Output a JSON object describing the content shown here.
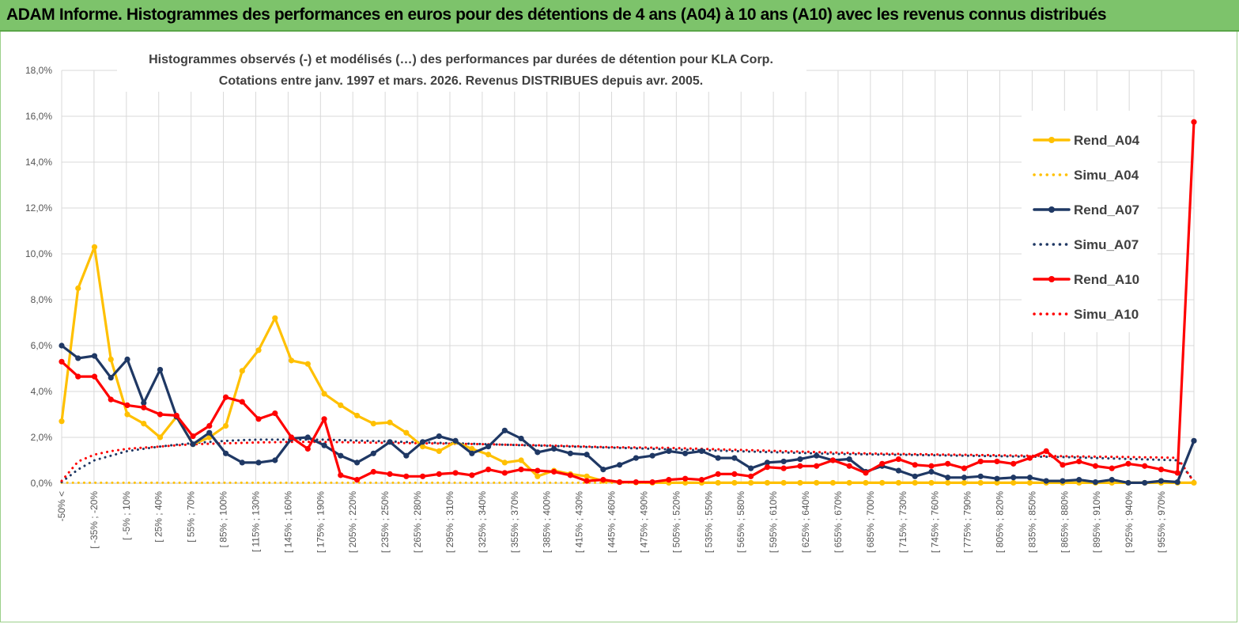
{
  "banner": {
    "title": "ADAM Informe. Histogrammes des performances en euros pour des détentions de 4 ans (A04) à 10 ans (A10) avec les revenus connus distribués"
  },
  "chart_data": {
    "type": "line",
    "title_line1": "Histogrammes observés (-) et modélisés (…) des performances par durées de détention pour KLA Corp.",
    "title_line2": "Cotations entre janv. 1997 et mars. 2026. Revenus DISTRIBUES depuis avr. 2005.",
    "ylim": [
      0,
      18
    ],
    "yticks": [
      "0,0%",
      "2,0%",
      "4,0%",
      "6,0%",
      "8,0%",
      "10,0%",
      "12,0%",
      "14,0%",
      "16,0%",
      "18,0%"
    ],
    "xlabels": [
      "-50% <",
      "[ -35% ; -20%",
      "[ -5% ; 10%",
      "[ 25% ; 40%",
      "[ 55% ; 70%",
      "[ 85% ; 100%",
      "[ 115% ; 130%",
      "[ 145% ; 160%",
      "[ 175% ; 190%",
      "[ 205% ; 220%",
      "[ 235% ; 250%",
      "[ 265% ; 280%",
      "[ 295% ; 310%",
      "[ 325% ; 340%",
      "[ 355% ; 370%",
      "[ 385% ; 400%",
      "[ 415% ; 430%",
      "[ 445% ; 460%",
      "[ 475% ; 490%",
      "[ 505% ; 520%",
      "[ 535% ; 550%",
      "[ 565% ; 580%",
      "[ 595% ; 610%",
      "[ 625% ; 640%",
      "[ 655% ; 670%",
      "[ 685% ; 700%",
      "[ 715% ; 730%",
      "[ 745% ; 760%",
      "[ 775% ; 790%",
      "[ 805% ; 820%",
      "[ 835% ; 850%",
      "[ 865% ; 880%",
      "[ 895% ; 910%",
      "[ 925% ; 940%",
      "[ 955% ; 970%"
    ],
    "n_points": 70,
    "legend": [
      "Rend_A04",
      "Simu_A04",
      "Rend_A07",
      "Simu_A07",
      "Rend_A10",
      "Simu_A10"
    ],
    "series": [
      {
        "name": "Rend_A04",
        "color": "#FFC000",
        "style": "solid",
        "values": [
          2.7,
          8.5,
          10.3,
          5.4,
          3.0,
          2.6,
          2.0,
          2.9,
          1.7,
          2.0,
          2.5,
          4.9,
          5.8,
          7.2,
          5.35,
          5.2,
          3.9,
          3.4,
          2.95,
          2.6,
          2.65,
          2.2,
          1.6,
          1.4,
          1.8,
          1.5,
          1.25,
          0.9,
          1.0,
          0.3,
          0.55,
          0.4,
          0.3,
          0.1,
          0.05,
          0.03,
          0.02,
          0.02,
          0.02,
          0.02,
          0.02,
          0.02,
          0.02,
          0.02,
          0.02,
          0.02,
          0.02,
          0.02,
          0.02,
          0.02,
          0.02,
          0.02,
          0.02,
          0.02,
          0.02,
          0.02,
          0.02,
          0.02,
          0.02,
          0.02,
          0.02,
          0.02,
          0.02,
          0.02,
          0.02,
          0.02,
          0.02,
          0.02,
          0.02,
          0.02
        ]
      },
      {
        "name": "Simu_A04",
        "color": "#FFC000",
        "style": "dotted",
        "values": [
          0.02,
          0.02,
          0.02,
          0.02,
          0.02,
          0.02,
          0.02,
          0.02,
          0.02,
          0.02,
          0.02,
          0.02,
          0.02,
          0.02,
          0.02,
          0.02,
          0.02,
          0.02,
          0.02,
          0.02,
          0.02,
          0.02,
          0.02,
          0.02,
          0.02,
          0.02,
          0.02,
          0.02,
          0.02,
          0.02,
          0.02,
          0.02,
          0.02,
          0.02,
          0.02,
          0.02,
          0.02,
          0.02,
          0.02,
          0.02,
          0.02,
          0.02,
          0.02,
          0.02,
          0.02,
          0.02,
          0.02,
          0.02,
          0.02,
          0.02,
          0.02,
          0.02,
          0.02,
          0.02,
          0.02,
          0.02,
          0.02,
          0.02,
          0.02,
          0.02,
          0.02,
          0.02,
          0.02,
          0.02,
          0.02,
          0.02,
          0.02,
          0.02,
          0.02,
          0.02
        ]
      },
      {
        "name": "Rend_A07",
        "color": "#1F3864",
        "style": "solid",
        "values": [
          6.0,
          5.45,
          5.55,
          4.6,
          5.4,
          3.5,
          4.95,
          2.9,
          1.7,
          2.2,
          1.3,
          0.9,
          0.9,
          1.0,
          1.95,
          2.0,
          1.65,
          1.2,
          0.9,
          1.3,
          1.8,
          1.2,
          1.8,
          2.05,
          1.85,
          1.3,
          1.6,
          2.3,
          1.95,
          1.35,
          1.5,
          1.3,
          1.25,
          0.6,
          0.8,
          1.1,
          1.2,
          1.4,
          1.3,
          1.4,
          1.1,
          1.1,
          0.65,
          0.9,
          0.95,
          1.05,
          1.2,
          1.0,
          1.05,
          0.5,
          0.75,
          0.55,
          0.3,
          0.5,
          0.25,
          0.25,
          0.3,
          0.2,
          0.25,
          0.25,
          0.1,
          0.1,
          0.15,
          0.05,
          0.15,
          0.02,
          0.02,
          0.1,
          0.05,
          1.85
        ]
      },
      {
        "name": "Simu_A07",
        "color": "#1F3864",
        "style": "dotted",
        "values": [
          0.05,
          0.6,
          1.0,
          1.2,
          1.4,
          1.5,
          1.6,
          1.68,
          1.75,
          1.8,
          1.85,
          1.88,
          1.9,
          1.9,
          1.9,
          1.9,
          1.9,
          1.88,
          1.86,
          1.84,
          1.82,
          1.8,
          1.78,
          1.76,
          1.74,
          1.72,
          1.7,
          1.68,
          1.66,
          1.64,
          1.62,
          1.6,
          1.58,
          1.56,
          1.54,
          1.52,
          1.5,
          1.48,
          1.46,
          1.44,
          1.42,
          1.4,
          1.38,
          1.36,
          1.34,
          1.32,
          1.3,
          1.28,
          1.27,
          1.26,
          1.25,
          1.24,
          1.23,
          1.22,
          1.21,
          1.2,
          1.19,
          1.18,
          1.17,
          1.16,
          1.15,
          1.14,
          1.12,
          1.1,
          1.08,
          1.06,
          1.04,
          1.02,
          1.0,
          0.1
        ]
      },
      {
        "name": "Rend_A10",
        "color": "#FF0000",
        "style": "solid",
        "values": [
          5.3,
          4.65,
          4.65,
          3.65,
          3.4,
          3.3,
          3.0,
          2.95,
          2.05,
          2.5,
          3.75,
          3.55,
          2.8,
          3.05,
          2.0,
          1.5,
          2.8,
          0.35,
          0.15,
          0.5,
          0.4,
          0.3,
          0.3,
          0.4,
          0.45,
          0.35,
          0.6,
          0.45,
          0.6,
          0.55,
          0.5,
          0.35,
          0.1,
          0.15,
          0.05,
          0.05,
          0.05,
          0.15,
          0.2,
          0.15,
          0.4,
          0.4,
          0.3,
          0.7,
          0.65,
          0.75,
          0.75,
          1.0,
          0.75,
          0.45,
          0.85,
          1.05,
          0.8,
          0.75,
          0.85,
          0.65,
          0.95,
          0.95,
          0.85,
          1.1,
          1.4,
          0.8,
          0.95,
          0.75,
          0.65,
          0.85,
          0.75,
          0.6,
          0.45,
          15.75
        ]
      },
      {
        "name": "Simu_A10",
        "color": "#FF0000",
        "style": "dotted",
        "values": [
          0.1,
          0.95,
          1.25,
          1.4,
          1.5,
          1.55,
          1.6,
          1.65,
          1.7,
          1.72,
          1.74,
          1.76,
          1.78,
          1.79,
          1.8,
          1.8,
          1.8,
          1.79,
          1.78,
          1.77,
          1.76,
          1.75,
          1.74,
          1.73,
          1.72,
          1.71,
          1.7,
          1.68,
          1.67,
          1.66,
          1.64,
          1.62,
          1.6,
          1.58,
          1.57,
          1.56,
          1.55,
          1.54,
          1.52,
          1.5,
          1.48,
          1.46,
          1.44,
          1.42,
          1.4,
          1.38,
          1.36,
          1.34,
          1.32,
          1.3,
          1.29,
          1.28,
          1.27,
          1.26,
          1.25,
          1.24,
          1.23,
          1.22,
          1.21,
          1.2,
          1.19,
          1.18,
          1.17,
          1.16,
          1.15,
          1.14,
          1.13,
          1.12,
          1.11,
          0.05
        ]
      }
    ]
  }
}
